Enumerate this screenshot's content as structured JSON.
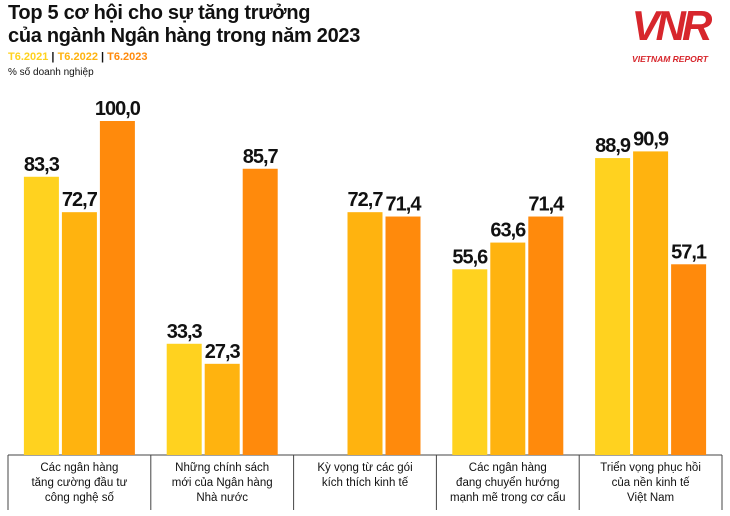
{
  "chart_data": {
    "type": "bar",
    "title": "Top 5 cơ hội cho sự tăng trưởng\ncủa ngành Ngân hàng trong năm 2023",
    "subtitle": "% số doanh nghiệp",
    "categories": [
      "Các ngân hàng\ntăng cường đầu tư\ncông nghệ số",
      "Những chính sách\nmới của Ngân hàng\nNhà nước",
      "Kỳ vọng từ các gói\nkích thích kinh tế",
      "Các ngân hàng\nđang chuyển hướng\nmạnh mẽ trong cơ cấu",
      "Triển vọng phục hồi\ncủa nền kinh tế\nViệt Nam"
    ],
    "series": [
      {
        "name": "T6.2021",
        "color": "#ffd21f",
        "values": [
          83.3,
          33.3,
          null,
          55.6,
          88.9
        ],
        "value_labels": [
          "83,3",
          "33,3",
          null,
          "55,6",
          "88,9"
        ]
      },
      {
        "name": "T6.2022",
        "color": "#ffb30f",
        "values": [
          72.7,
          27.3,
          72.7,
          63.6,
          90.9
        ],
        "value_labels": [
          "72,7",
          "27,3",
          "72,7",
          "63,6",
          "90,9"
        ]
      },
      {
        "name": "T6.2023",
        "color": "#ff8a0c",
        "values": [
          100.0,
          85.7,
          71.4,
          71.4,
          57.1
        ],
        "value_labels": [
          "100,0",
          "85,7",
          "71,4",
          "71,4",
          "57,1"
        ]
      }
    ],
    "ylim": [
      0,
      100
    ]
  },
  "logo": {
    "mark": "VNR",
    "text": "VIETNAM REPORT"
  }
}
